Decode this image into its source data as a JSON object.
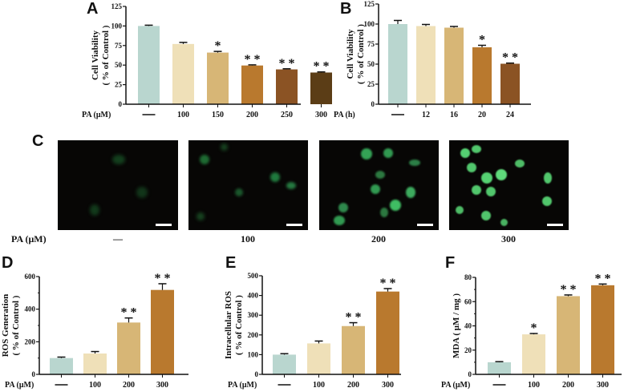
{
  "panels": {
    "A": {
      "letter": "A"
    },
    "B": {
      "letter": "B"
    },
    "C": {
      "letter": "C",
      "x_label": "PA (μM)",
      "conditions": [
        "—",
        "100",
        "200",
        "300"
      ]
    },
    "D": {
      "letter": "D"
    },
    "E": {
      "letter": "E"
    },
    "F": {
      "letter": "F"
    }
  },
  "colors": {
    "control": "#b9d6cf",
    "c1": "#efe0b8",
    "c2": "#d7b676",
    "c3": "#b9792e",
    "c4": "#8b5324",
    "c5": "#5b3d16"
  },
  "chart_data": [
    {
      "id": "A",
      "type": "bar",
      "title": "",
      "xlabel": "PA (μM)",
      "ylabel": "Cell Viability\n( % of Control )",
      "categories": [
        "—",
        "100",
        "150",
        "200",
        "250",
        "300"
      ],
      "values": [
        100,
        77,
        66,
        49.5,
        44.5,
        40.5
      ],
      "errors": [
        1,
        2,
        1.5,
        0.8,
        0.8,
        0.8
      ],
      "significance": [
        "",
        "",
        "*",
        "**",
        "**",
        "**"
      ],
      "ylim": [
        0,
        125
      ],
      "yticks": [
        0,
        25,
        50,
        75,
        100,
        125
      ],
      "bar_colors": [
        "#b9d6cf",
        "#efe0b8",
        "#d7b676",
        "#b9792e",
        "#8b5324",
        "#5b3d16"
      ]
    },
    {
      "id": "B",
      "type": "bar",
      "title": "",
      "xlabel": "PA (h)",
      "ylabel": "Cell Viability\n( % of Control )",
      "categories": [
        "—",
        "12",
        "16",
        "20",
        "24"
      ],
      "values": [
        100,
        97.5,
        95.5,
        71,
        50.5
      ],
      "errors": [
        4.5,
        2,
        1.5,
        2.5,
        0.8
      ],
      "significance": [
        "",
        "",
        "",
        "*",
        "**"
      ],
      "ylim": [
        0,
        125
      ],
      "yticks": [
        0,
        25,
        50,
        75,
        100,
        125
      ],
      "bar_colors": [
        "#b9d6cf",
        "#efe0b8",
        "#d7b676",
        "#b9792e",
        "#8b5324"
      ]
    },
    {
      "id": "D",
      "type": "bar",
      "title": "",
      "xlabel": "PA (μM)",
      "ylabel": "ROS Generation\n( % of Control )",
      "categories": [
        "—",
        "100",
        "200",
        "300"
      ],
      "values": [
        100,
        128,
        318,
        518
      ],
      "errors": [
        6,
        12,
        28,
        38
      ],
      "significance": [
        "",
        "",
        "**",
        "**"
      ],
      "ylim": [
        0,
        600
      ],
      "yticks": [
        0,
        200,
        400,
        600
      ],
      "bar_colors": [
        "#b9d6cf",
        "#efe0b8",
        "#d7b676",
        "#b9792e"
      ]
    },
    {
      "id": "E",
      "type": "bar",
      "title": "",
      "xlabel": "PA (μM)",
      "ylabel": "Intracellular  ROS\n( % of Control )",
      "categories": [
        "—",
        "100",
        "200",
        "300"
      ],
      "values": [
        100,
        157,
        245,
        420
      ],
      "errors": [
        5,
        12,
        17,
        15
      ],
      "significance": [
        "",
        "",
        "**",
        "**"
      ],
      "ylim": [
        0,
        500
      ],
      "yticks": [
        0,
        100,
        200,
        300,
        400,
        500
      ],
      "bar_colors": [
        "#b9d6cf",
        "#efe0b8",
        "#d7b676",
        "#b9792e"
      ]
    },
    {
      "id": "F",
      "type": "bar",
      "title": "",
      "xlabel": "PA (μM)",
      "ylabel": "MDA ( μM / mg )",
      "categories": [
        "—",
        "100",
        "200",
        "300"
      ],
      "values": [
        10,
        33,
        64.5,
        73.5
      ],
      "errors": [
        0.5,
        0.7,
        1,
        1
      ],
      "significance": [
        "",
        "*",
        "**",
        "**"
      ],
      "ylim": [
        0,
        80
      ],
      "yticks": [
        0,
        20,
        40,
        60,
        80
      ],
      "bar_colors": [
        "#b9d6cf",
        "#efe0b8",
        "#d7b676",
        "#b9792e"
      ]
    }
  ]
}
